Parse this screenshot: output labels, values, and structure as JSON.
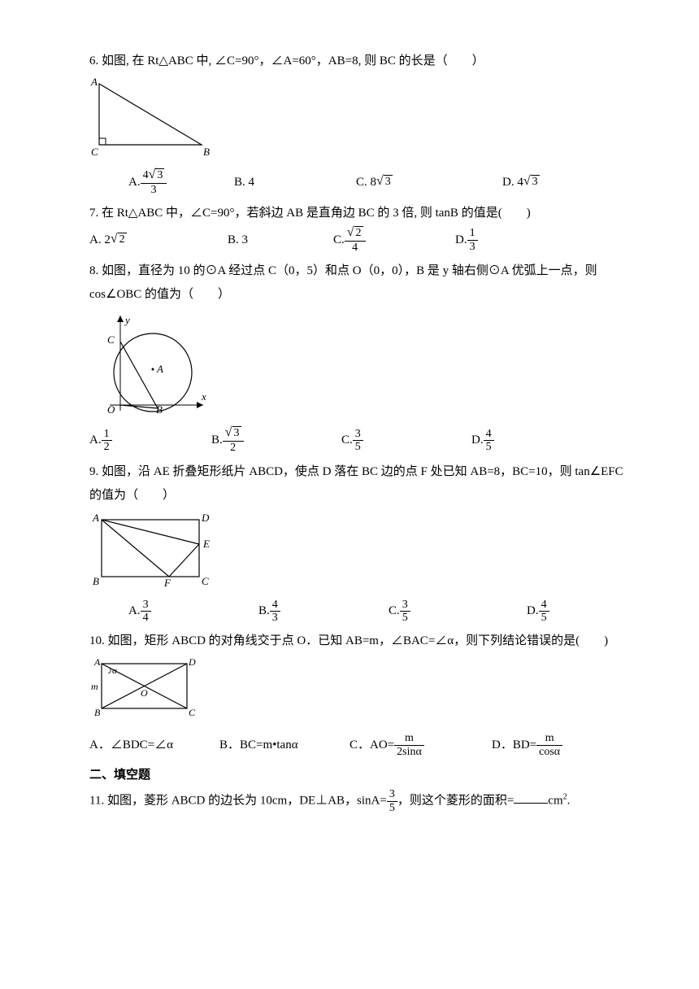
{
  "q6": {
    "text": "6. 如图, 在 Rt△ABC 中, ∠C=90°，∠A=60°，AB=8, 则 BC 的长是（　　）",
    "optA_prefix": "A.",
    "optA_num": "4√3",
    "optA_den": "3",
    "optB": "B. 4",
    "optC_prefix": "C. 8",
    "optC_rad": "3",
    "optD_prefix": "D. 4",
    "optD_rad": "3",
    "optA_w": 130,
    "optB_w": 150,
    "optC_w": 180,
    "optD_w": 120
  },
  "q7": {
    "text": "7. 在 Rt△ABC 中，∠C=90°，若斜边 AB 是直角边 BC 的 3 倍, 则 tanB 的值是(　　)",
    "optA_prefix": "A. 2",
    "optA_rad": "2",
    "optB": "B. 3",
    "optC_prefix": "C.",
    "optC_num_rad": "2",
    "optC_den": "4",
    "optD_prefix": "D.",
    "optD_num": "1",
    "optD_den": "3",
    "optA_w": 170,
    "optB_w": 130,
    "optC_w": 150,
    "optD_w": 120
  },
  "q8": {
    "text1": "8. 如图，直径为 10 的⊙A 经过点 C（0，5）和点 O（0，0），B 是 y 轴右侧⊙A 优弧上一点，则",
    "text2": "cos∠OBC 的值为（　　）",
    "optA_prefix": "A.",
    "optA_num": "1",
    "optA_den": "2",
    "optB_prefix": "B.",
    "optB_num_rad": "3",
    "optB_den": "2",
    "optC_prefix": "C.",
    "optC_num": "3",
    "optC_den": "5",
    "optD_prefix": "D.",
    "optD_num": "4",
    "optD_den": "5",
    "optA_w": 150,
    "optB_w": 160,
    "optC_w": 160,
    "optD_w": 120
  },
  "q9": {
    "text1": "9. 如图，沿 AE 折叠矩形纸片 ABCD，使点 D 落在 BC 边的点 F 处已知 AB=8，BC=10，则 tan∠EFC",
    "text2": "的值为（　　）",
    "optA_prefix": "A.",
    "optA_num": "3",
    "optA_den": "4",
    "optB_prefix": "B.",
    "optB_num": "4",
    "optB_den": "3",
    "optC_prefix": "C.",
    "optC_num": "3",
    "optC_den": "5",
    "optD_prefix": "D.",
    "optD_num": "4",
    "optD_den": "5",
    "optA_w": 160,
    "optB_w": 160,
    "optC_w": 170,
    "optD_w": 120
  },
  "q10": {
    "text": "10. 如图，矩形 ABCD 的对角线交于点 O．已知 AB=m，∠BAC=∠α，则下列结论错误的是(　　)",
    "optA": "A．∠BDC=∠α",
    "optB": "B．BC=m•tanα",
    "optC_prefix": "C．AO=",
    "optC_num": "m",
    "optC_den": "2sinα",
    "optD_prefix": "D．BD=",
    "optD_num": "m",
    "optD_den": "cosα",
    "optA_w": 160,
    "optB_w": 160,
    "optC_w": 175,
    "optD_w": 120
  },
  "section2": "二、填空题",
  "q11": {
    "pre": "11. 如图，菱形 ABCD 的边长为 10cm，DE⊥AB，sinA=",
    "num": "3",
    "den": "5",
    "post1": "，则这个菱形的面积=",
    "post2": "cm"
  },
  "svg": {
    "stroke": "#000000",
    "font": "italic 13px serif",
    "font_upright": "13px serif"
  }
}
